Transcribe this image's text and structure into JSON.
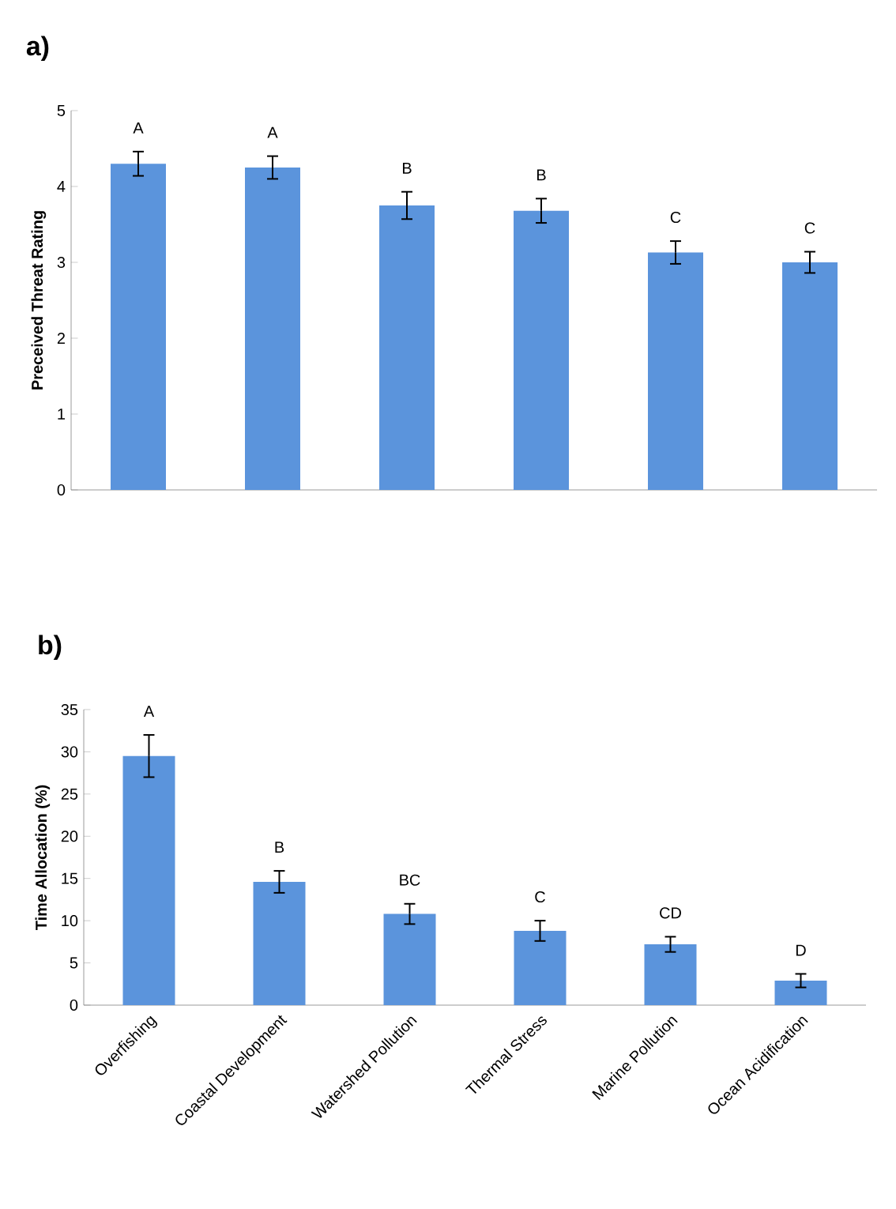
{
  "chart_data": [
    {
      "type": "bar",
      "title": "a)",
      "ylabel": "Preceived Threat Rating",
      "categories": [
        null,
        null,
        null,
        null,
        null,
        null
      ],
      "values": [
        4.3,
        4.25,
        3.75,
        3.68,
        3.13,
        3.0
      ],
      "errors": [
        0.16,
        0.15,
        0.18,
        0.16,
        0.15,
        0.14
      ],
      "value_labels": [
        "A",
        "A",
        "B",
        "B",
        "C",
        "C"
      ],
      "color": "#5b94dc",
      "ylim": [
        0,
        5
      ],
      "yticks": [
        0,
        1,
        2,
        3,
        4,
        5
      ],
      "tick_labels": "y"
    },
    {
      "type": "bar",
      "title": "b)",
      "ylabel": "Time Allocation (%)",
      "categories": [
        "Overfishing",
        "Coastal Development",
        "Watershed Pollution",
        "Thermal Stress",
        "Marine Pollution",
        "Ocean Acidification"
      ],
      "values": [
        29.5,
        14.6,
        10.8,
        8.8,
        7.2,
        2.9
      ],
      "errors": [
        2.5,
        1.3,
        1.2,
        1.2,
        0.9,
        0.8
      ],
      "value_labels": [
        "A",
        "B",
        "BC",
        "C",
        "CD",
        "D"
      ],
      "color": "#5b94dc",
      "ylim": [
        0,
        35
      ],
      "yticks": [
        0,
        5,
        10,
        15,
        20,
        25,
        30,
        35
      ]
    }
  ]
}
